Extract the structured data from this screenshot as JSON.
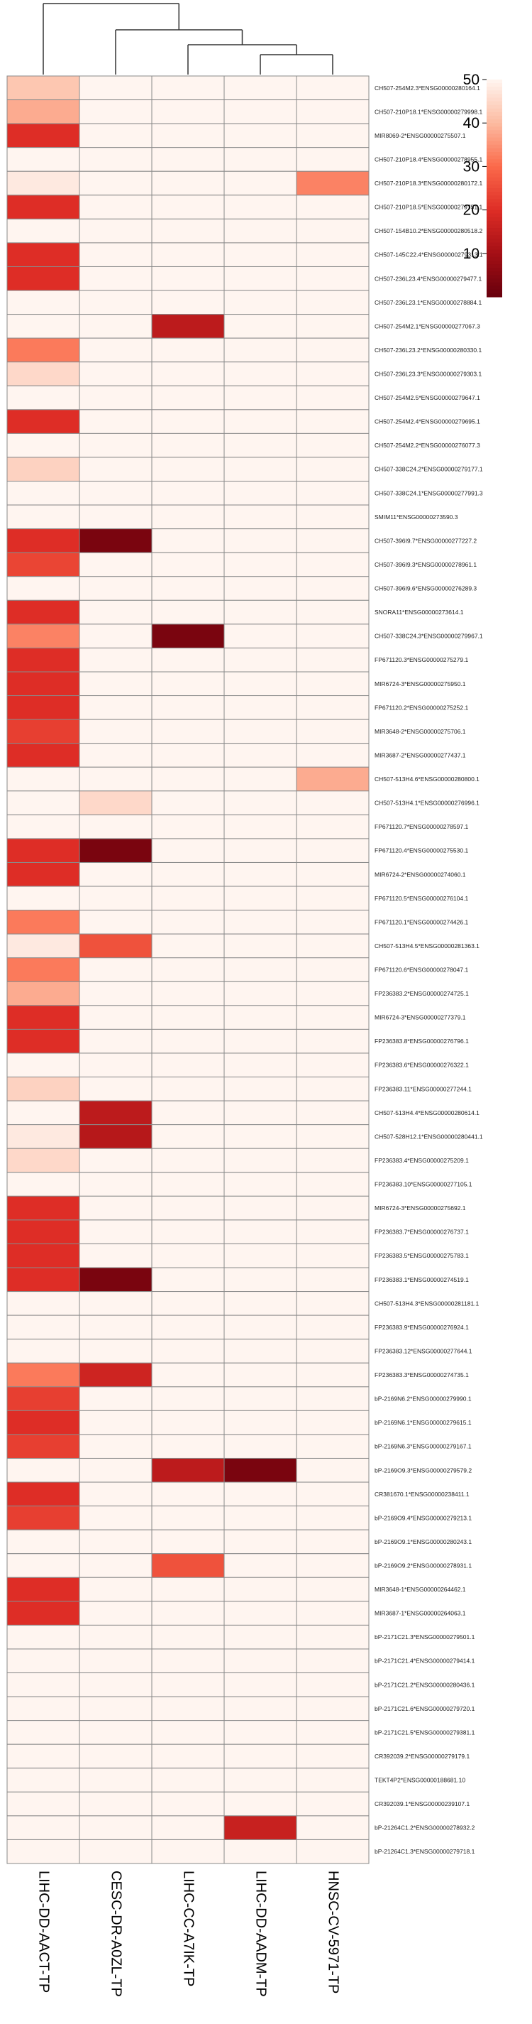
{
  "chart_data": {
    "type": "heatmap",
    "title": "",
    "columns": [
      "LIHC-DD-AACT-TP",
      "CESC-DR-A0ZL-TP",
      "LIHC-CC-A7IK-TP",
      "LIHC-DD-AADM-TP",
      "HNSC-CV-5971-TP"
    ],
    "dendrogram": "complete-linkage tree over the 5 columns",
    "color_scale": {
      "min": 0,
      "max": 50,
      "ticks": [
        10,
        20,
        30,
        40,
        50
      ],
      "low_color": "#67000d",
      "high_color": "#fff5f0"
    },
    "rows": [
      {
        "label": "CH507-254M2.3*ENSG00000280164.1",
        "values": [
          42,
          50,
          50,
          50,
          50
        ]
      },
      {
        "label": "CH507-210P18.1*ENSG00000279998.1",
        "values": [
          38,
          50,
          50,
          50,
          50
        ]
      },
      {
        "label": "MIR8069-2*ENSG00000275507.1",
        "values": [
          20,
          50,
          50,
          50,
          50
        ]
      },
      {
        "label": "CH507-210P18.4*ENSG00000278955.1",
        "values": [
          50,
          50,
          50,
          50,
          50
        ]
      },
      {
        "label": "CH507-210P18.3*ENSG00000280172.1",
        "values": [
          48,
          50,
          50,
          50,
          33
        ]
      },
      {
        "label": "CH507-210P18.5*ENSG00000279751.1",
        "values": [
          20,
          50,
          50,
          50,
          50
        ]
      },
      {
        "label": "CH507-154B10.2*ENSG00000280518.2",
        "values": [
          50,
          50,
          50,
          50,
          50
        ]
      },
      {
        "label": "CH507-145C22.4*ENSG00000279313.1",
        "values": [
          20,
          50,
          50,
          50,
          50
        ]
      },
      {
        "label": "CH507-236L23.4*ENSG00000279477.1",
        "values": [
          20,
          50,
          50,
          50,
          50
        ]
      },
      {
        "label": "CH507-236L23.1*ENSG00000278884.1",
        "values": [
          50,
          50,
          50,
          50,
          50
        ]
      },
      {
        "label": "CH507-254M2.1*ENSG00000277067.3",
        "values": [
          50,
          50,
          14,
          50,
          50
        ]
      },
      {
        "label": "CH507-236L23.2*ENSG00000280330.1",
        "values": [
          32,
          50,
          50,
          50,
          50
        ]
      },
      {
        "label": "CH507-236L23.3*ENSG00000279303.1",
        "values": [
          45,
          50,
          50,
          50,
          50
        ]
      },
      {
        "label": "CH507-254M2.5*ENSG00000279647.1",
        "values": [
          50,
          50,
          50,
          50,
          50
        ]
      },
      {
        "label": "CH507-254M2.4*ENSG00000279695.1",
        "values": [
          20,
          50,
          50,
          50,
          50
        ]
      },
      {
        "label": "CH507-254M2.2*ENSG00000276077.3",
        "values": [
          50,
          50,
          50,
          50,
          50
        ]
      },
      {
        "label": "CH507-338C24.2*ENSG00000279177.1",
        "values": [
          44,
          50,
          50,
          50,
          50
        ]
      },
      {
        "label": "CH507-338C24.1*ENSG00000277991.3",
        "values": [
          50,
          50,
          50,
          50,
          50
        ]
      },
      {
        "label": "SMIM11*ENSG00000273590.3",
        "values": [
          50,
          50,
          50,
          50,
          50
        ]
      },
      {
        "label": "CH507-396I9.7*ENSG00000277227.2",
        "values": [
          20,
          3,
          50,
          50,
          50
        ]
      },
      {
        "label": "CH507-396I9.3*ENSG00000278961.1",
        "values": [
          24,
          50,
          50,
          50,
          50
        ]
      },
      {
        "label": "CH507-396I9.6*ENSG00000276289.3",
        "values": [
          50,
          50,
          50,
          50,
          50
        ]
      },
      {
        "label": "SNORA11*ENSG00000273614.1",
        "values": [
          20,
          50,
          50,
          50,
          50
        ]
      },
      {
        "label": "CH507-338C24.3*ENSG00000279967.1",
        "values": [
          33,
          50,
          3,
          50,
          50
        ]
      },
      {
        "label": "FP671120.3*ENSG00000275279.1",
        "values": [
          20,
          50,
          50,
          50,
          50
        ]
      },
      {
        "label": "MIR6724-3*ENSG00000275950.1",
        "values": [
          20,
          50,
          50,
          50,
          50
        ]
      },
      {
        "label": "FP671120.2*ENSG00000275252.1",
        "values": [
          20,
          50,
          50,
          50,
          50
        ]
      },
      {
        "label": "MIR3648-2*ENSG00000275706.1",
        "values": [
          23,
          50,
          50,
          50,
          50
        ]
      },
      {
        "label": "MIR3687-2*ENSG00000277437.1",
        "values": [
          20,
          50,
          50,
          50,
          50
        ]
      },
      {
        "label": "CH507-513H4.6*ENSG00000280800.1",
        "values": [
          50,
          50,
          50,
          50,
          38
        ]
      },
      {
        "label": "CH507-513H4.1*ENSG00000276996.1",
        "values": [
          50,
          45,
          50,
          50,
          50
        ]
      },
      {
        "label": "FP671120.7*ENSG00000278597.1",
        "values": [
          50,
          50,
          50,
          50,
          50
        ]
      },
      {
        "label": "FP671120.4*ENSG00000275530.1",
        "values": [
          20,
          3,
          50,
          50,
          50
        ]
      },
      {
        "label": "MIR6724-2*ENSG00000274060.1",
        "values": [
          20,
          50,
          50,
          50,
          50
        ]
      },
      {
        "label": "FP671120.5*ENSG00000276104.1",
        "values": [
          50,
          50,
          50,
          50,
          50
        ]
      },
      {
        "label": "FP671120.1*ENSG00000274426.1",
        "values": [
          32,
          50,
          50,
          50,
          50
        ]
      },
      {
        "label": "CH507-513H4.5*ENSG00000281363.1",
        "values": [
          48,
          26,
          50,
          50,
          50
        ]
      },
      {
        "label": "FP671120.6*ENSG00000278047.1",
        "values": [
          32,
          50,
          50,
          50,
          50
        ]
      },
      {
        "label": "FP236383.2*ENSG00000274725.1",
        "values": [
          38,
          50,
          50,
          50,
          50
        ]
      },
      {
        "label": "MIR6724-3*ENSG00000277379.1",
        "values": [
          20,
          50,
          50,
          50,
          50
        ]
      },
      {
        "label": "FP236383.8*ENSG00000276796.1",
        "values": [
          20,
          50,
          50,
          50,
          50
        ]
      },
      {
        "label": "FP236383.6*ENSG00000276322.1",
        "values": [
          50,
          50,
          50,
          50,
          50
        ]
      },
      {
        "label": "FP236383.11*ENSG00000277244.1",
        "values": [
          44,
          50,
          50,
          50,
          50
        ]
      },
      {
        "label": "CH507-513H4.4*ENSG00000280614.1",
        "values": [
          50,
          14,
          50,
          50,
          50
        ]
      },
      {
        "label": "CH507-528H12.1*ENSG00000280441.1",
        "values": [
          48,
          13,
          50,
          50,
          50
        ]
      },
      {
        "label": "FP236383.4*ENSG00000275209.1",
        "values": [
          45,
          50,
          50,
          50,
          50
        ]
      },
      {
        "label": "FP236383.10*ENSG00000277105.1",
        "values": [
          50,
          50,
          50,
          50,
          50
        ]
      },
      {
        "label": "MIR6724-3*ENSG00000275692.1",
        "values": [
          20,
          50,
          50,
          50,
          50
        ]
      },
      {
        "label": "FP236383.7*ENSG00000276737.1",
        "values": [
          20,
          50,
          50,
          50,
          50
        ]
      },
      {
        "label": "FP236383.5*ENSG00000275783.1",
        "values": [
          20,
          50,
          50,
          50,
          50
        ]
      },
      {
        "label": "FP236383.1*ENSG00000274519.1",
        "values": [
          20,
          3,
          50,
          50,
          50
        ]
      },
      {
        "label": "CH507-513H4.3*ENSG00000281181.1",
        "values": [
          50,
          50,
          50,
          50,
          50
        ]
      },
      {
        "label": "FP236383.9*ENSG00000276924.1",
        "values": [
          50,
          50,
          50,
          50,
          50
        ]
      },
      {
        "label": "FP236383.12*ENSG00000277644.1",
        "values": [
          50,
          50,
          50,
          50,
          50
        ]
      },
      {
        "label": "FP236383.3*ENSG00000274735.1",
        "values": [
          32,
          17,
          50,
          50,
          50
        ]
      },
      {
        "label": "bP-2169N6.2*ENSG00000279990.1",
        "values": [
          23,
          50,
          50,
          50,
          50
        ]
      },
      {
        "label": "bP-2169N6.1*ENSG00000279615.1",
        "values": [
          20,
          50,
          50,
          50,
          50
        ]
      },
      {
        "label": "bP-2169N6.3*ENSG00000279167.1",
        "values": [
          23,
          50,
          50,
          50,
          50
        ]
      },
      {
        "label": "bP-2169O9.3*ENSG00000279579.2",
        "values": [
          50,
          50,
          14,
          3,
          50
        ]
      },
      {
        "label": "CR381670.1*ENSG00000238411.1",
        "values": [
          20,
          50,
          50,
          50,
          50
        ]
      },
      {
        "label": "bP-2169O9.4*ENSG00000279213.1",
        "values": [
          23,
          50,
          50,
          50,
          50
        ]
      },
      {
        "label": "bP-2169O9.1*ENSG00000280243.1",
        "values": [
          50,
          50,
          50,
          50,
          50
        ]
      },
      {
        "label": "bP-2169O9.2*ENSG00000278931.1",
        "values": [
          50,
          50,
          26,
          50,
          50
        ]
      },
      {
        "label": "MIR3648-1*ENSG00000264462.1",
        "values": [
          20,
          50,
          50,
          50,
          50
        ]
      },
      {
        "label": "MIR3687-1*ENSG00000264063.1",
        "values": [
          20,
          50,
          50,
          50,
          50
        ]
      },
      {
        "label": "bP-2171C21.3*ENSG00000279501.1",
        "values": [
          50,
          50,
          50,
          50,
          50
        ]
      },
      {
        "label": "bP-2171C21.4*ENSG00000279414.1",
        "values": [
          50,
          50,
          50,
          50,
          50
        ]
      },
      {
        "label": "bP-2171C21.2*ENSG00000280436.1",
        "values": [
          50,
          50,
          50,
          50,
          50
        ]
      },
      {
        "label": "bP-2171C21.6*ENSG00000279720.1",
        "values": [
          50,
          50,
          50,
          50,
          50
        ]
      },
      {
        "label": "bP-2171C21.5*ENSG00000279381.1",
        "values": [
          50,
          50,
          50,
          50,
          50
        ]
      },
      {
        "label": "CR392039.2*ENSG00000279179.1",
        "values": [
          50,
          50,
          50,
          50,
          50
        ]
      },
      {
        "label": "TEKT4P2*ENSG00000188681.10",
        "values": [
          50,
          50,
          50,
          50,
          50
        ]
      },
      {
        "label": "CR392039.1*ENSG00000239107.1",
        "values": [
          50,
          50,
          50,
          50,
          50
        ]
      },
      {
        "label": "bP-21264C1.2*ENSG00000278932.2",
        "values": [
          50,
          50,
          50,
          16,
          50
        ]
      },
      {
        "label": "bP-21264C1.3*ENSG00000279718.1",
        "values": [
          50,
          50,
          50,
          50,
          50
        ]
      }
    ]
  }
}
